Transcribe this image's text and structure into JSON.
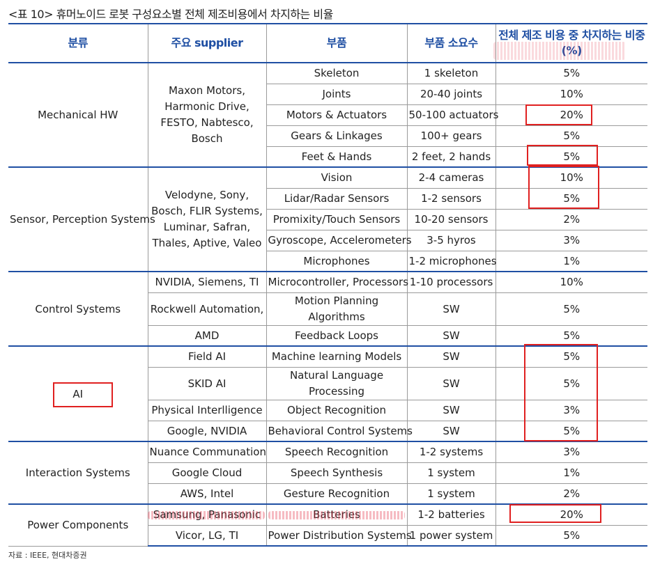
{
  "title": "<표 10> 휴머노이드 로봇 구성요소별 전체 제조비용에서 차지하는 비율",
  "headers": {
    "category": "분류",
    "supplier": "주요 supplier",
    "part": "부품",
    "quantity": "부품 소요수",
    "share": "전체 제조 비용 중 차지하는 비중(%)"
  },
  "groups": [
    {
      "category": "Mechanical HW",
      "supplier_text": "Maxon Motors, Harmonic Drive, FESTO, Nabtesco, Bosch",
      "rows": [
        {
          "part": "Skeleton",
          "quantity": "1 skeleton",
          "share": "5%"
        },
        {
          "part": "Joints",
          "quantity": "20-40 joints",
          "share": "10%"
        },
        {
          "part": "Motors & Actuators",
          "quantity": "50-100 actuators",
          "share": "20%"
        },
        {
          "part": "Gears & Linkages",
          "quantity": "100+ gears",
          "share": "5%"
        },
        {
          "part": "Feet & Hands",
          "quantity": "2 feet, 2 hands",
          "share": "5%"
        }
      ]
    },
    {
      "category": "Sensor, Perception Systems",
      "supplier_text": "Velodyne, Sony, Bosch, FLIR Systems, Luminar, Safran, Thales, Aptive, Valeo",
      "rows": [
        {
          "part": "Vision",
          "quantity": "2-4 cameras",
          "share": "10%"
        },
        {
          "part": "Lidar/Radar Sensors",
          "quantity": "1-2 sensors",
          "share": "5%"
        },
        {
          "part": "Promixity/Touch Sensors",
          "quantity": "10-20 sensors",
          "share": "2%"
        },
        {
          "part": "Gyroscope, Accelerometers",
          "quantity": "3-5 hyros",
          "share": "3%"
        },
        {
          "part": "Microphones",
          "quantity": "1-2 microphones",
          "share": "1%"
        }
      ]
    },
    {
      "category": "Control Systems",
      "rows": [
        {
          "supplier": "NVIDIA, Siemens, TI",
          "part": "Microcontroller, Processors",
          "quantity": "1-10 processors",
          "share": "10%"
        },
        {
          "supplier": "Rockwell Automation,",
          "part": "Motion Planning Algorithms",
          "quantity": "SW",
          "share": "5%"
        },
        {
          "supplier": "AMD",
          "part": "Feedback Loops",
          "quantity": "SW",
          "share": "5%"
        }
      ]
    },
    {
      "category": "AI",
      "rows": [
        {
          "supplier": "Field AI",
          "part": "Machine learning Models",
          "quantity": "SW",
          "share": "5%"
        },
        {
          "supplier": "SKID AI",
          "part": "Natural Language Processing",
          "quantity": "SW",
          "share": "5%"
        },
        {
          "supplier": "Physical Interlligence",
          "part": "Object Recognition",
          "quantity": "SW",
          "share": "3%"
        },
        {
          "supplier": "Google, NVIDIA",
          "part": "Behavioral Control Systems",
          "quantity": "SW",
          "share": "5%"
        }
      ]
    },
    {
      "category": "Interaction Systems",
      "rows": [
        {
          "supplier": "Nuance Communation",
          "part": "Speech Recognition",
          "quantity": "1-2 systems",
          "share": "3%"
        },
        {
          "supplier": "Google Cloud",
          "part": "Speech Synthesis",
          "quantity": "1 system",
          "share": "1%"
        },
        {
          "supplier": "AWS, Intel",
          "part": "Gesture Recognition",
          "quantity": "1 system",
          "share": "2%"
        }
      ]
    },
    {
      "category": "Power Components",
      "rows": [
        {
          "supplier": "Samsung, Panasonic",
          "part": "Batteries",
          "quantity": "1-2 batteries",
          "share": "20%"
        },
        {
          "supplier": "Vicor, LG, TI",
          "part": "Power Distribution Systems",
          "quantity": "1 power system",
          "share": "5%"
        }
      ]
    }
  ],
  "source": "자료 : IEEE, 현대차증권"
}
